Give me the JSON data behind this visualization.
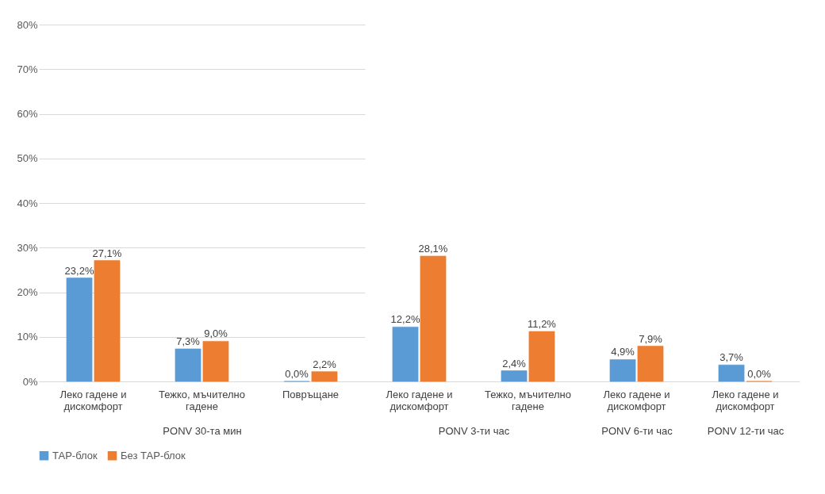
{
  "chart_data": [
    {
      "type": "bar",
      "xlabel": "PONV 30-та мин",
      "categories": [
        "Леко гадене и дискомфорт",
        "Тежко, мъчително гадене",
        "Повръщане"
      ],
      "series": [
        {
          "name": "ТАР-блок",
          "color": "#5b9bd5",
          "values": [
            23.2,
            7.3,
            0.0
          ],
          "value_labels": [
            "23,2%",
            "7,3%",
            "0,0%"
          ]
        },
        {
          "name": "Без ТАР-блок",
          "color": "#ed7d31",
          "values": [
            27.1,
            9.0,
            2.2
          ],
          "value_labels": [
            "27,1%",
            "9,0%",
            "2,2%"
          ]
        }
      ],
      "ylim": [
        0,
        80
      ],
      "yticks": [
        {
          "value": 0,
          "label": "0%"
        },
        {
          "value": 10,
          "label": "10%"
        },
        {
          "value": 20,
          "label": "20%"
        },
        {
          "value": 30,
          "label": "30%"
        },
        {
          "value": 40,
          "label": "40%"
        },
        {
          "value": 50,
          "label": "50%"
        },
        {
          "value": 60,
          "label": "60%"
        },
        {
          "value": 70,
          "label": "70%"
        },
        {
          "value": 80,
          "label": "80%"
        }
      ],
      "grid": "y",
      "legend": "bottom"
    },
    {
      "type": "bar",
      "xlabel": "PONV 3-ти час",
      "categories": [
        "Леко гадене и дискомфорт",
        "Тежко, мъчително гадене"
      ],
      "series": [
        {
          "name": "ТАР-блок",
          "color": "#5b9bd5",
          "values": [
            12.2,
            2.4
          ],
          "value_labels": [
            "12,2%",
            "2,4%"
          ]
        },
        {
          "name": "Без ТАР-блок",
          "color": "#ed7d31",
          "values": [
            28.1,
            11.2
          ],
          "value_labels": [
            "28,1%",
            "11,2%"
          ]
        }
      ],
      "ylim": [
        0,
        80
      ],
      "grid": "y",
      "legend": "bottom",
      "tick_labels": "x"
    },
    {
      "type": "bar",
      "xlabel": "PONV 6-ти час",
      "categories": [
        "Леко гадене и дискомфорт"
      ],
      "series": [
        {
          "name": "ТАР-блок",
          "color": "#5b9bd5",
          "values": [
            4.9
          ],
          "value_labels": [
            "4,9%"
          ]
        },
        {
          "name": "Без ТАР-блок",
          "color": "#ed7d31",
          "values": [
            7.9
          ],
          "value_labels": [
            "7,9%"
          ]
        }
      ],
      "ylim": [
        0,
        80
      ],
      "grid": "y",
      "legend": "bottom",
      "tick_labels": "x"
    },
    {
      "type": "bar",
      "xlabel": "PONV 12-ти час",
      "categories": [
        "Леко гадене и дискомфорт"
      ],
      "series": [
        {
          "name": "ТАР-блок",
          "color": "#5b9bd5",
          "values": [
            3.7
          ],
          "value_labels": [
            "3,7%"
          ]
        },
        {
          "name": "Без ТАР-блок",
          "color": "#ed7d31",
          "values": [
            0.0
          ],
          "value_labels": [
            "0,0%"
          ]
        }
      ],
      "ylim": [
        0,
        80
      ],
      "grid": "y",
      "legend": "bottom",
      "tick_labels": "x"
    }
  ]
}
